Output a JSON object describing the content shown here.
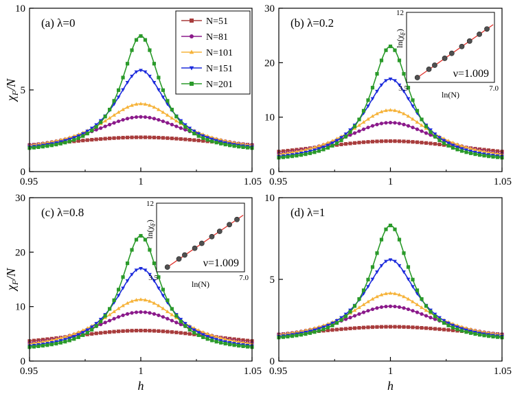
{
  "colors": {
    "N=51": "#a83c3c",
    "N=81": "#8b1a8b",
    "N=101": "#f6b33a",
    "N=151": "#1c2bdc",
    "N=201": "#2a9a2a",
    "inset_line": "#e0302a",
    "inset_marker": "#505050"
  },
  "chart_data": [
    {
      "type": "line",
      "panel_label": "(a) λ=0",
      "xlabel": "",
      "ylabel": "χF/N",
      "xlim": [
        0.95,
        1.05
      ],
      "ylim": [
        0,
        10
      ],
      "xticks": [
        0.95,
        1,
        1.05
      ],
      "xticklabels": [
        "0.95",
        "1",
        "1.05"
      ],
      "yticks": [
        0,
        5,
        10
      ],
      "yticklabels": [
        "0",
        "5",
        "10"
      ],
      "legend": {
        "position": "top-right",
        "entries": [
          "N=51",
          "N=81",
          "N=101",
          "N=151",
          "N=201"
        ],
        "markers": [
          "square",
          "circle",
          "triangle-up",
          "triangle-down",
          "square"
        ]
      },
      "series": [
        {
          "name": "N=51",
          "peak": 2.1,
          "base": 1.12,
          "width": 0.052
        },
        {
          "name": "N=81",
          "peak": 3.35,
          "base": 1.12,
          "width": 0.027
        },
        {
          "name": "N=101",
          "peak": 4.15,
          "base": 1.12,
          "width": 0.022
        },
        {
          "name": "N=151",
          "peak": 6.2,
          "base": 1.12,
          "width": 0.0145
        },
        {
          "name": "N=201",
          "peak": 8.3,
          "base": 1.12,
          "width": 0.0108
        }
      ]
    },
    {
      "type": "line",
      "panel_label": "(b) λ=0.2",
      "xlabel": "",
      "ylabel": "",
      "xlim": [
        0.95,
        1.05
      ],
      "ylim": [
        0,
        30
      ],
      "xticks": [
        0.95,
        1,
        1.05
      ],
      "xticklabels": [
        "0.95",
        "1",
        "1.05"
      ],
      "yticks": [
        0,
        10,
        20,
        30
      ],
      "yticklabels": [
        "0",
        "10",
        "20",
        "30"
      ],
      "series": [
        {
          "name": "N=51",
          "peak": 5.6,
          "base": 1.6,
          "width": 0.052
        },
        {
          "name": "N=81",
          "peak": 9.0,
          "base": 1.6,
          "width": 0.027
        },
        {
          "name": "N=101",
          "peak": 11.3,
          "base": 1.6,
          "width": 0.022
        },
        {
          "name": "N=151",
          "peak": 17.0,
          "base": 1.6,
          "width": 0.0145
        },
        {
          "name": "N=201",
          "peak": 23.0,
          "base": 1.6,
          "width": 0.0108
        }
      ],
      "inset": {
        "type": "scatter",
        "xlabel": "ln(N)",
        "ylabel": "ln(χF)",
        "xlim": [
          3.5,
          7.0
        ],
        "ylim": [
          4,
          12
        ],
        "xticklabels": [
          "3.5",
          "7.0"
        ],
        "yticklabels": [
          "12"
        ],
        "annotation": "ν=1.009",
        "x": [
          3.93,
          4.39,
          4.62,
          5.02,
          5.3,
          5.7,
          6.01,
          6.4,
          6.7
        ],
        "y": [
          4.55,
          5.5,
          5.96,
          6.75,
          7.32,
          8.1,
          8.72,
          9.5,
          10.1
        ],
        "fit_line": [
          [
            3.93,
            4.55
          ],
          [
            6.95,
            10.6
          ]
        ]
      }
    },
    {
      "type": "line",
      "panel_label": "(c) λ=0.8",
      "xlabel": "h",
      "ylabel": "χF/N",
      "xlim": [
        0.95,
        1.05
      ],
      "ylim": [
        0,
        30
      ],
      "xticks": [
        0.95,
        1,
        1.05
      ],
      "xticklabels": [
        "0.95",
        "1",
        "1.05"
      ],
      "yticks": [
        0,
        10,
        20,
        30
      ],
      "yticklabels": [
        "0",
        "10",
        "20",
        "30"
      ],
      "series": [
        {
          "name": "N=51",
          "peak": 5.6,
          "base": 1.6,
          "width": 0.052
        },
        {
          "name": "N=81",
          "peak": 9.0,
          "base": 1.6,
          "width": 0.027
        },
        {
          "name": "N=101",
          "peak": 11.3,
          "base": 1.6,
          "width": 0.022
        },
        {
          "name": "N=151",
          "peak": 17.0,
          "base": 1.6,
          "width": 0.0145
        },
        {
          "name": "N=201",
          "peak": 23.0,
          "base": 1.6,
          "width": 0.0108
        }
      ],
      "inset": {
        "type": "scatter",
        "xlabel": "ln(N)",
        "ylabel": "ln(χF)",
        "xlim": [
          3.5,
          7.0
        ],
        "ylim": [
          4,
          12
        ],
        "xticklabels": [
          "3.5",
          "7.0"
        ],
        "yticklabels": [
          "12"
        ],
        "annotation": "ν=1.009",
        "x": [
          3.93,
          4.39,
          4.62,
          5.02,
          5.3,
          5.7,
          6.01,
          6.4,
          6.7
        ],
        "y": [
          4.55,
          5.5,
          5.96,
          6.75,
          7.32,
          8.1,
          8.72,
          9.5,
          10.1
        ],
        "fit_line": [
          [
            3.93,
            4.55
          ],
          [
            6.95,
            10.6
          ]
        ]
      }
    },
    {
      "type": "line",
      "panel_label": "(d) λ=1",
      "xlabel": "h",
      "ylabel": "",
      "xlim": [
        0.95,
        1.05
      ],
      "ylim": [
        0,
        10
      ],
      "xticks": [
        0.95,
        1,
        1.05
      ],
      "xticklabels": [
        "0.95",
        "1",
        "1.05"
      ],
      "yticks": [
        0,
        5,
        10
      ],
      "yticklabels": [
        "0",
        "5",
        "10"
      ],
      "series": [
        {
          "name": "N=51",
          "peak": 2.1,
          "base": 1.12,
          "width": 0.052
        },
        {
          "name": "N=81",
          "peak": 3.35,
          "base": 1.12,
          "width": 0.027
        },
        {
          "name": "N=101",
          "peak": 4.15,
          "base": 1.12,
          "width": 0.022
        },
        {
          "name": "N=151",
          "peak": 6.2,
          "base": 1.12,
          "width": 0.0145
        },
        {
          "name": "N=201",
          "peak": 8.3,
          "base": 1.12,
          "width": 0.0108
        }
      ]
    }
  ]
}
